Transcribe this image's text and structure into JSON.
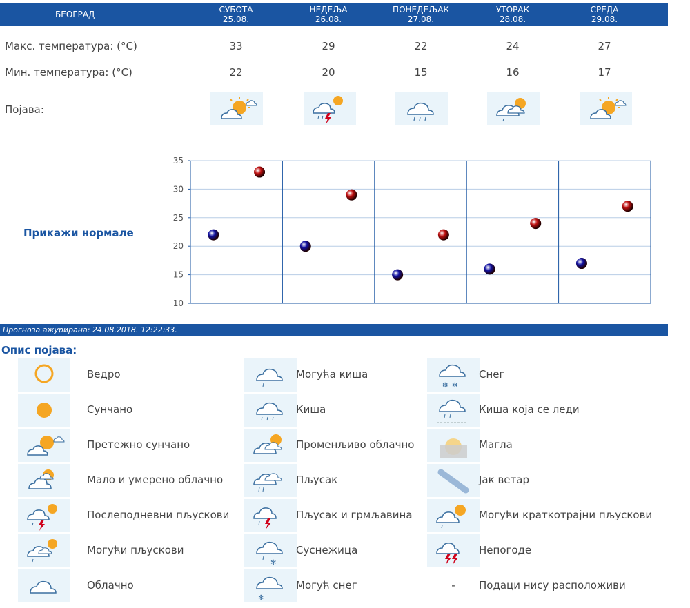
{
  "header": {
    "city": "БЕОГРАД",
    "days": [
      {
        "name": "СУБОТА",
        "date": "25.08."
      },
      {
        "name": "НЕДЕЉА",
        "date": "26.08."
      },
      {
        "name": "ПОНЕДЕЉАК",
        "date": "27.08."
      },
      {
        "name": "УТОРАК",
        "date": "28.08."
      },
      {
        "name": "СРЕДА",
        "date": "29.08."
      }
    ]
  },
  "rows": {
    "max_label": "Макс. температура: (°C)",
    "min_label": "Мин. температура: (°C)",
    "phen_label": "Појава:"
  },
  "forecast": {
    "max": [
      "33",
      "29",
      "22",
      "24",
      "27"
    ],
    "min": [
      "22",
      "20",
      "15",
      "16",
      "17"
    ],
    "icons": [
      "partly-sunny-icon",
      "thunderstorm-icon",
      "rain-icon",
      "variable-cloudy-icon",
      "partly-sunny-icon"
    ]
  },
  "normals_link": "Прикажи нормале",
  "chart_data": {
    "type": "scatter",
    "categories": [
      "25.08.",
      "26.08.",
      "27.08.",
      "28.08.",
      "29.08."
    ],
    "series": [
      {
        "values": [
          33,
          29,
          22,
          24,
          27
        ],
        "color": "#c01010"
      },
      {
        "values": [
          22,
          20,
          15,
          16,
          17
        ],
        "color": "#1010a0"
      }
    ],
    "ylim": [
      10,
      35
    ],
    "yticks": [
      "10",
      "15",
      "20",
      "25",
      "30",
      "35"
    ],
    "grid": true,
    "gridColor": "#1a55a2"
  },
  "status": "Прогноза ажурирана:  24.08.2018.  12:22:33.",
  "legend": {
    "title": "Опис појава:",
    "items": [
      {
        "label": "Ведро",
        "icon": "clear-icon"
      },
      {
        "label": "Сунчано",
        "icon": "sunny-icon"
      },
      {
        "label": "Претежно сунчано",
        "icon": "mostly-sunny-icon"
      },
      {
        "label": "Мало и умерено облачно",
        "icon": "partly-cloudy-icon"
      },
      {
        "label": "Послеподневни пљускови",
        "icon": "afternoon-showers-icon"
      },
      {
        "label": "Могући пљускови",
        "icon": "possible-showers-icon"
      },
      {
        "label": "Облачно",
        "icon": "cloudy-icon"
      },
      {
        "label": "Могућа киша",
        "icon": "possible-rain-icon"
      },
      {
        "label": "Киша",
        "icon": "rain-icon"
      },
      {
        "label": "Променљиво облачно",
        "icon": "variable-cloudy-icon"
      },
      {
        "label": "Пљусак",
        "icon": "shower-icon"
      },
      {
        "label": "Пљусак и грмљавина",
        "icon": "shower-thunder-icon"
      },
      {
        "label": "Суснежица",
        "icon": "sleet-icon"
      },
      {
        "label": "Могућ снег",
        "icon": "possible-snow-icon"
      },
      {
        "label": "Снег",
        "icon": "snow-icon"
      },
      {
        "label": "Киша која се леди",
        "icon": "freezing-rain-icon"
      },
      {
        "label": "Магла",
        "icon": "fog-icon"
      },
      {
        "label": "Јак ветар",
        "icon": "strong-wind-icon"
      },
      {
        "label": "Могући краткотрајни пљускови",
        "icon": "brief-showers-icon"
      },
      {
        "label": "Непогоде",
        "icon": "storm-icon"
      },
      {
        "label": "Подаци нису расположиви",
        "icon": "no-data-icon",
        "symbol": "-"
      }
    ]
  }
}
